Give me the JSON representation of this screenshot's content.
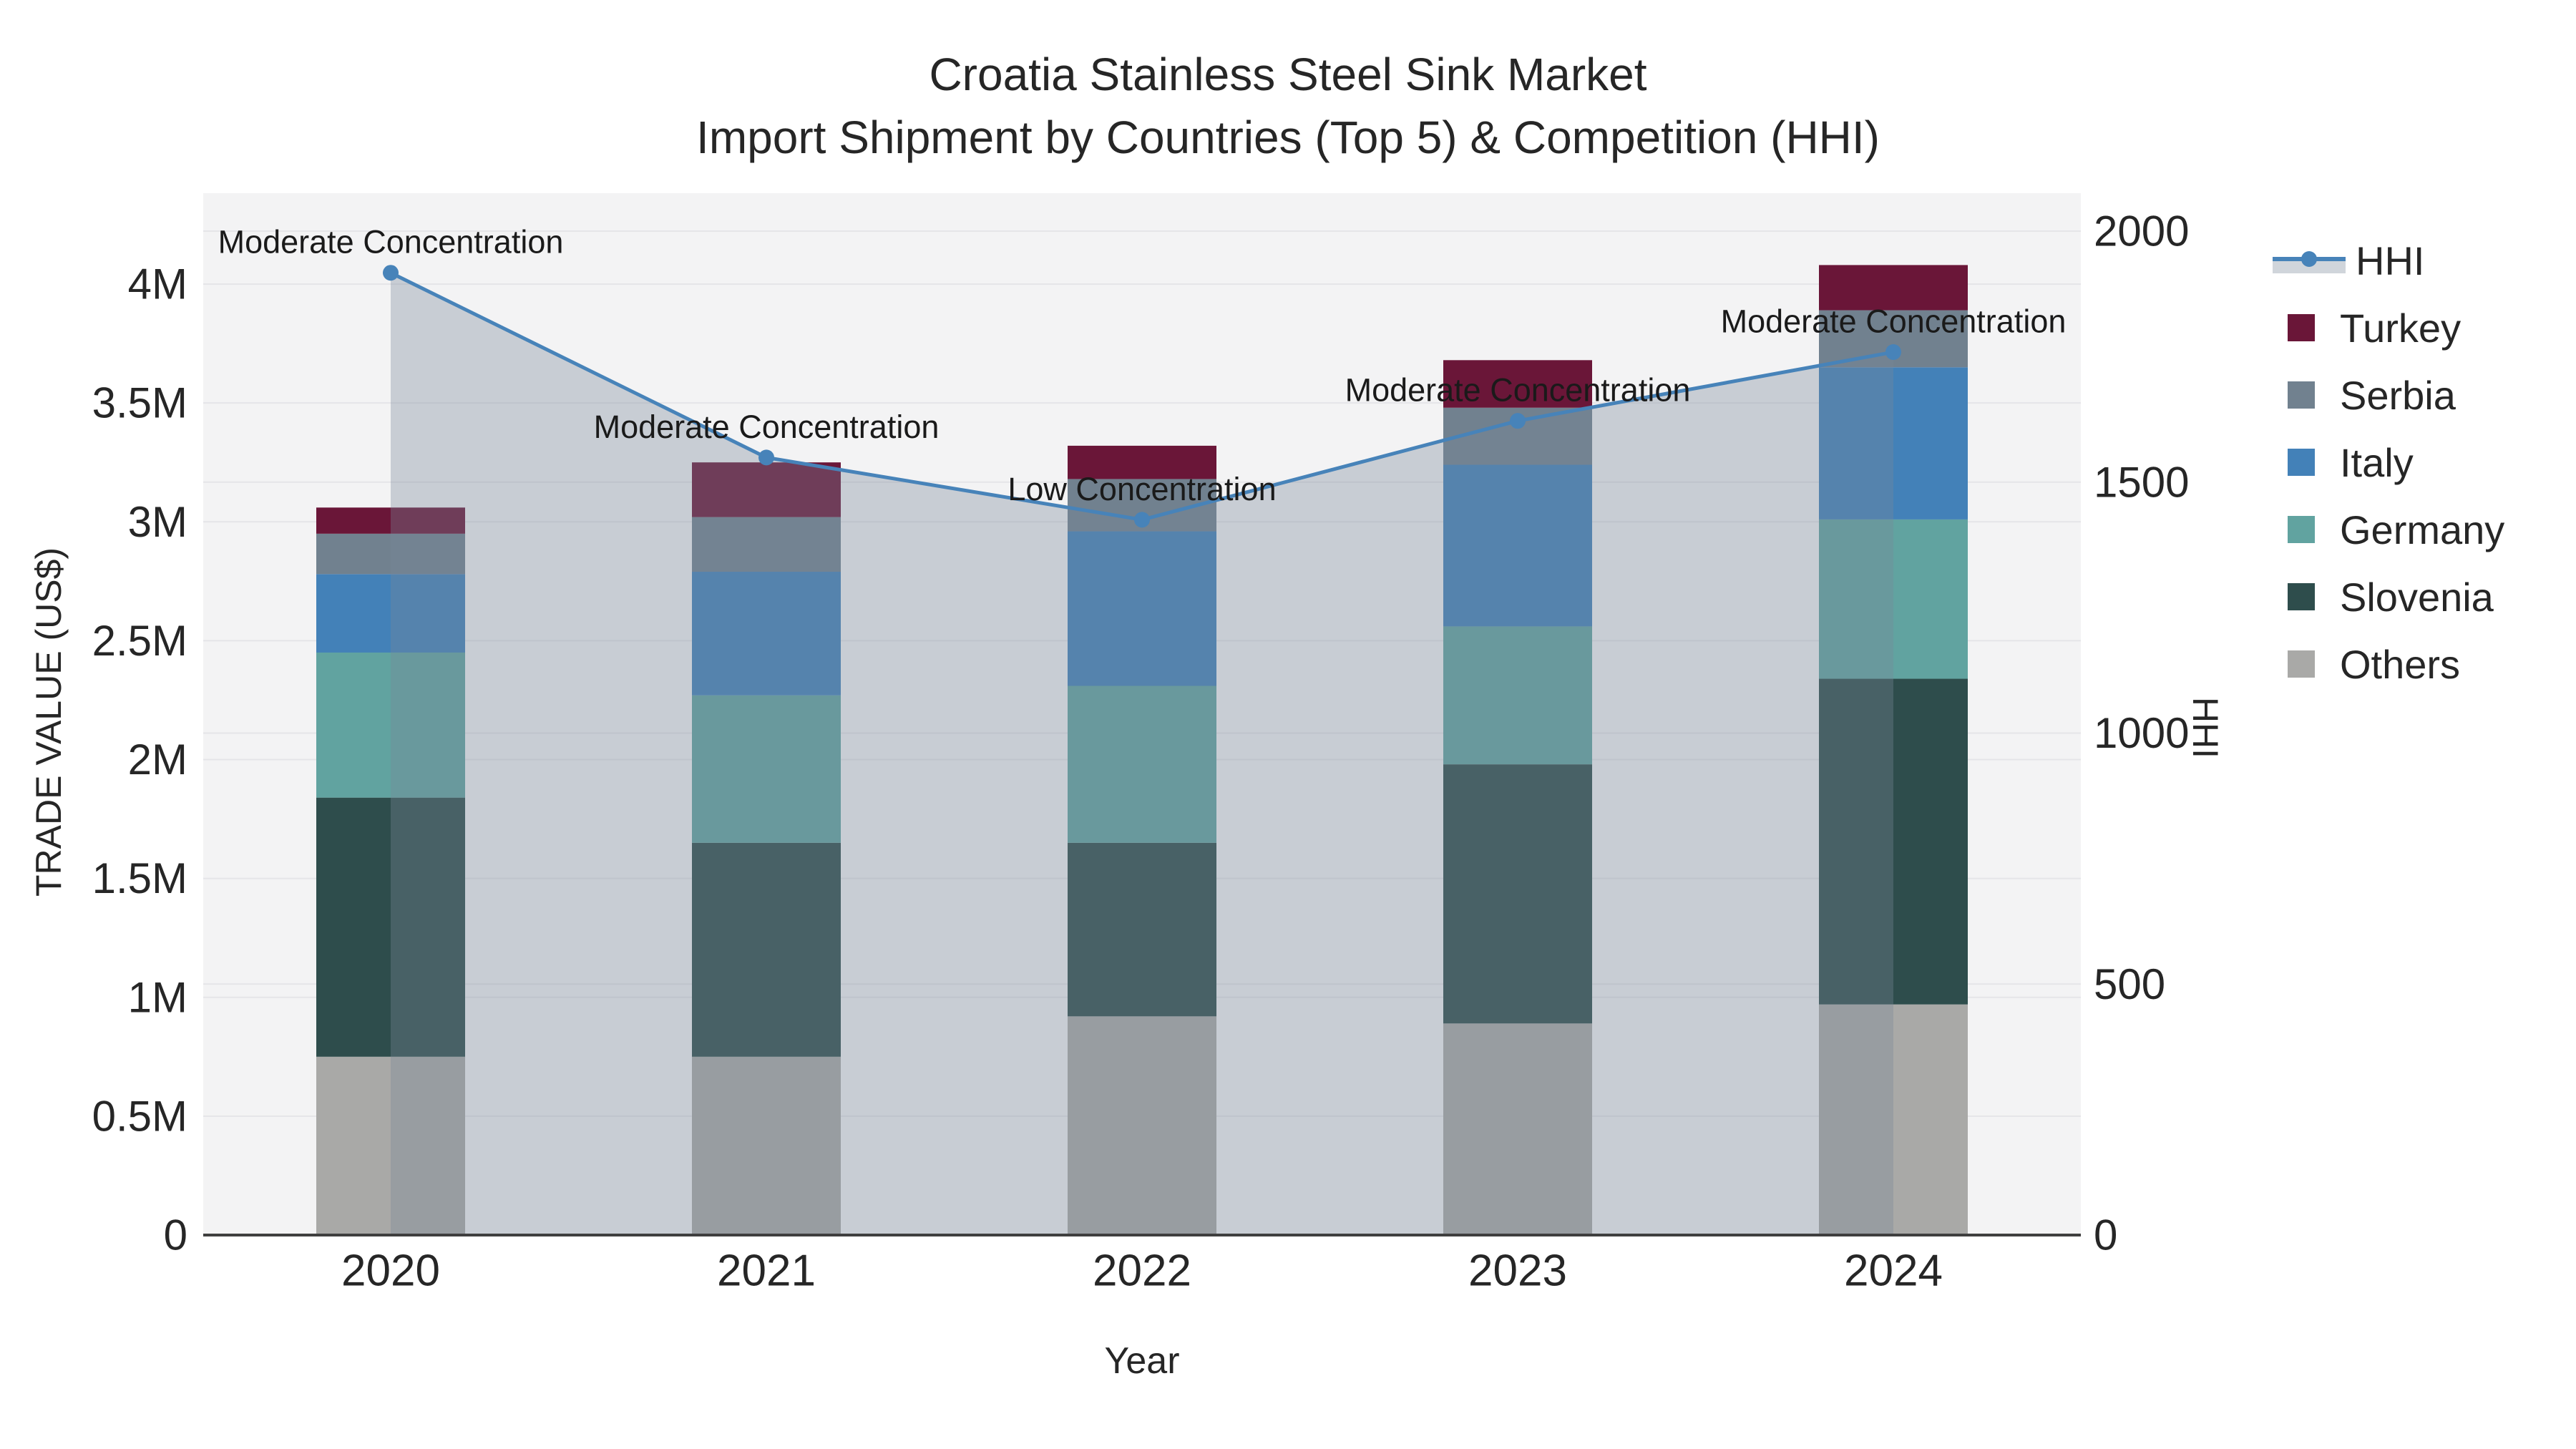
{
  "chart_data": {
    "type": "bar+line",
    "title": "Croatia Stainless Steel Sink Market",
    "subtitle": "Import Shipment by Countries (Top 5) & Competition (HHI)",
    "xlabel": "Year",
    "ylabel_left": "TRADE VALUE (US$)",
    "ylabel_right": "HHI",
    "categories": [
      "2020",
      "2021",
      "2022",
      "2023",
      "2024"
    ],
    "values_unit_left": "million US$",
    "series": [
      {
        "name": "Others",
        "color": "#a9a9a7",
        "values": [
          0.75,
          0.75,
          0.92,
          0.89,
          0.97
        ]
      },
      {
        "name": "Slovenia",
        "color": "#2e4d4c",
        "values": [
          1.09,
          0.9,
          0.73,
          1.09,
          1.37
        ]
      },
      {
        "name": "Germany",
        "color": "#61a3a0",
        "values": [
          0.61,
          0.62,
          0.66,
          0.58,
          0.67
        ]
      },
      {
        "name": "Italy",
        "color": "#4381b8",
        "values": [
          0.33,
          0.52,
          0.65,
          0.68,
          0.64
        ]
      },
      {
        "name": "Serbia",
        "color": "#71818f",
        "values": [
          0.17,
          0.23,
          0.22,
          0.24,
          0.24
        ]
      },
      {
        "name": "Turkey",
        "color": "#6a1638",
        "values": [
          0.11,
          0.23,
          0.14,
          0.2,
          0.19
        ]
      }
    ],
    "bar_totals": [
      3.06,
      3.25,
      3.32,
      3.68,
      4.08
    ],
    "line_series": {
      "name": "HHI",
      "color": "#4783b9",
      "fill_color": "#778899",
      "fill_opacity": 0.35,
      "values": [
        1917,
        1549,
        1425,
        1622,
        1759
      ]
    },
    "annotations": [
      {
        "x": "2020",
        "text": "Moderate Concentration"
      },
      {
        "x": "2021",
        "text": "Moderate Concentration"
      },
      {
        "x": "2022",
        "text": "Low Concentration"
      },
      {
        "x": "2023",
        "text": "Moderate Concentration"
      },
      {
        "x": "2024",
        "text": "Moderate Concentration"
      }
    ],
    "axes": {
      "left_tick_values": [
        0,
        0.5,
        1,
        1.5,
        2,
        2.5,
        3,
        3.5,
        4
      ],
      "left_tick_labels": [
        "0",
        "0.5M",
        "1M",
        "1.5M",
        "2M",
        "2.5M",
        "3M",
        "3.5M",
        "4M"
      ],
      "right_tick_values": [
        0,
        500,
        1000,
        1500,
        2000
      ],
      "right_tick_labels": [
        "0",
        "500",
        "1000",
        "1500",
        "2000"
      ],
      "left_range": [
        0,
        4.38
      ],
      "right_range": [
        0,
        2075
      ],
      "grid": true,
      "plot_bg": "#f3f3f4",
      "grid_color": "#e5e5e8",
      "axis_line_color": "#3f3f3f"
    },
    "legend": {
      "position": "right",
      "entries": [
        "HHI",
        "Turkey",
        "Serbia",
        "Italy",
        "Germany",
        "Slovenia",
        "Others"
      ]
    }
  }
}
